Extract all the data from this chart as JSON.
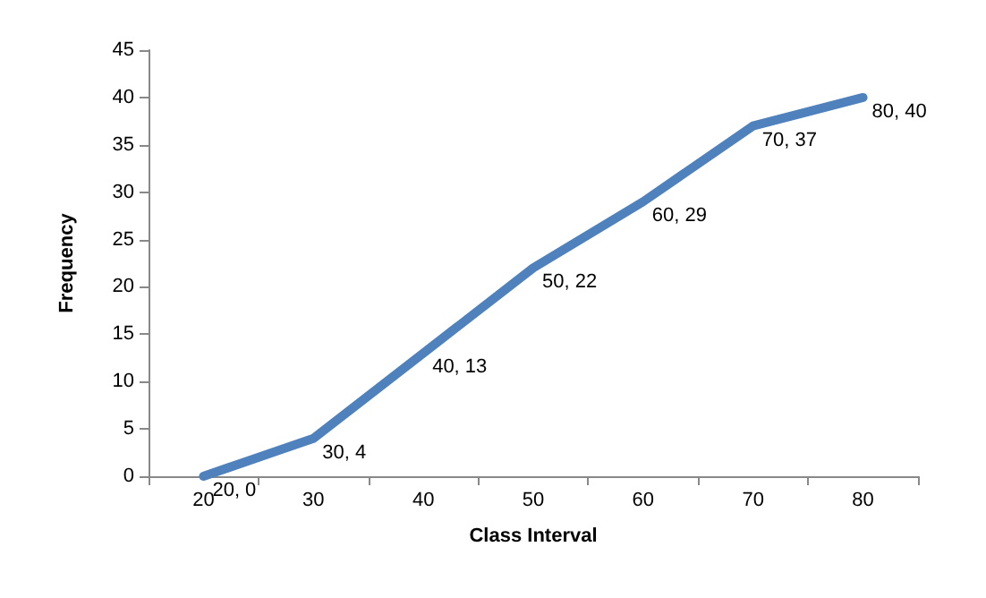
{
  "chart_data": {
    "type": "line",
    "xlabel": "Class Interval",
    "ylabel": "Frequency",
    "categories": [
      "20",
      "30",
      "40",
      "50",
      "60",
      "70",
      "80"
    ],
    "series": [
      {
        "color": "#4f81bd",
        "values": [
          0,
          4,
          13,
          22,
          29,
          37,
          40
        ],
        "value_labels": [
          "20, 0",
          "30, 4",
          "40, 13",
          "50, 22",
          "60, 29",
          "70, 37",
          "80, 40"
        ]
      }
    ],
    "ylim": [
      0,
      45
    ],
    "yticks": [
      0,
      5,
      10,
      15,
      20,
      25,
      30,
      35,
      40,
      45
    ],
    "grid": false,
    "marker": "none",
    "line_style": "solid"
  }
}
